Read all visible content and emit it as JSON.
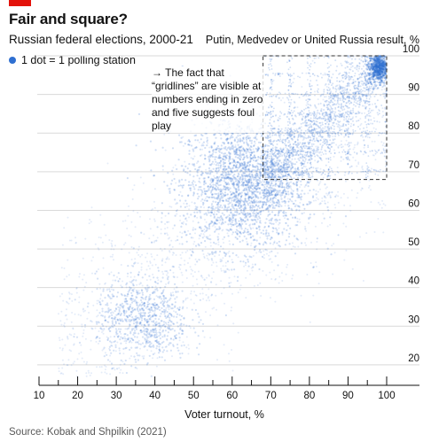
{
  "chart_data": {
    "type": "scatter",
    "title": "Fair and square?",
    "subtitle": "Russian federal elections, 2000-21",
    "xlabel": "Voter turnout, %",
    "ylabel": "Putin, Medvedev or United Russia result, %",
    "xlim": [
      10,
      100
    ],
    "ylim": [
      17,
      100
    ],
    "x_ticks": [
      10,
      20,
      30,
      40,
      50,
      60,
      70,
      80,
      90,
      100
    ],
    "y_ticks": [
      20,
      30,
      40,
      50,
      60,
      70,
      80,
      90,
      100
    ],
    "legend": {
      "label": "1 dot = 1 polling station",
      "position": "top-left"
    },
    "grid": "horizontal",
    "annotation": {
      "text": "→ The fact that “gridlines” are visible at numbers ending in zero and five suggests foul play",
      "box_x_range": [
        68,
        100
      ],
      "box_y_range": [
        68,
        100
      ]
    },
    "clusters": [
      {
        "turnout_center": 63,
        "result_center": 67,
        "density": "high"
      },
      {
        "turnout_center": 37,
        "result_center": 32,
        "density": "medium"
      },
      {
        "turnout_center": 98,
        "result_center": 97,
        "density": "peak"
      }
    ],
    "series": [
      {
        "name": "1 dot = 1 polling station",
        "color": "#2f6fd1"
      }
    ],
    "source": "Source: Kobak and Shpilkin (2021)"
  }
}
